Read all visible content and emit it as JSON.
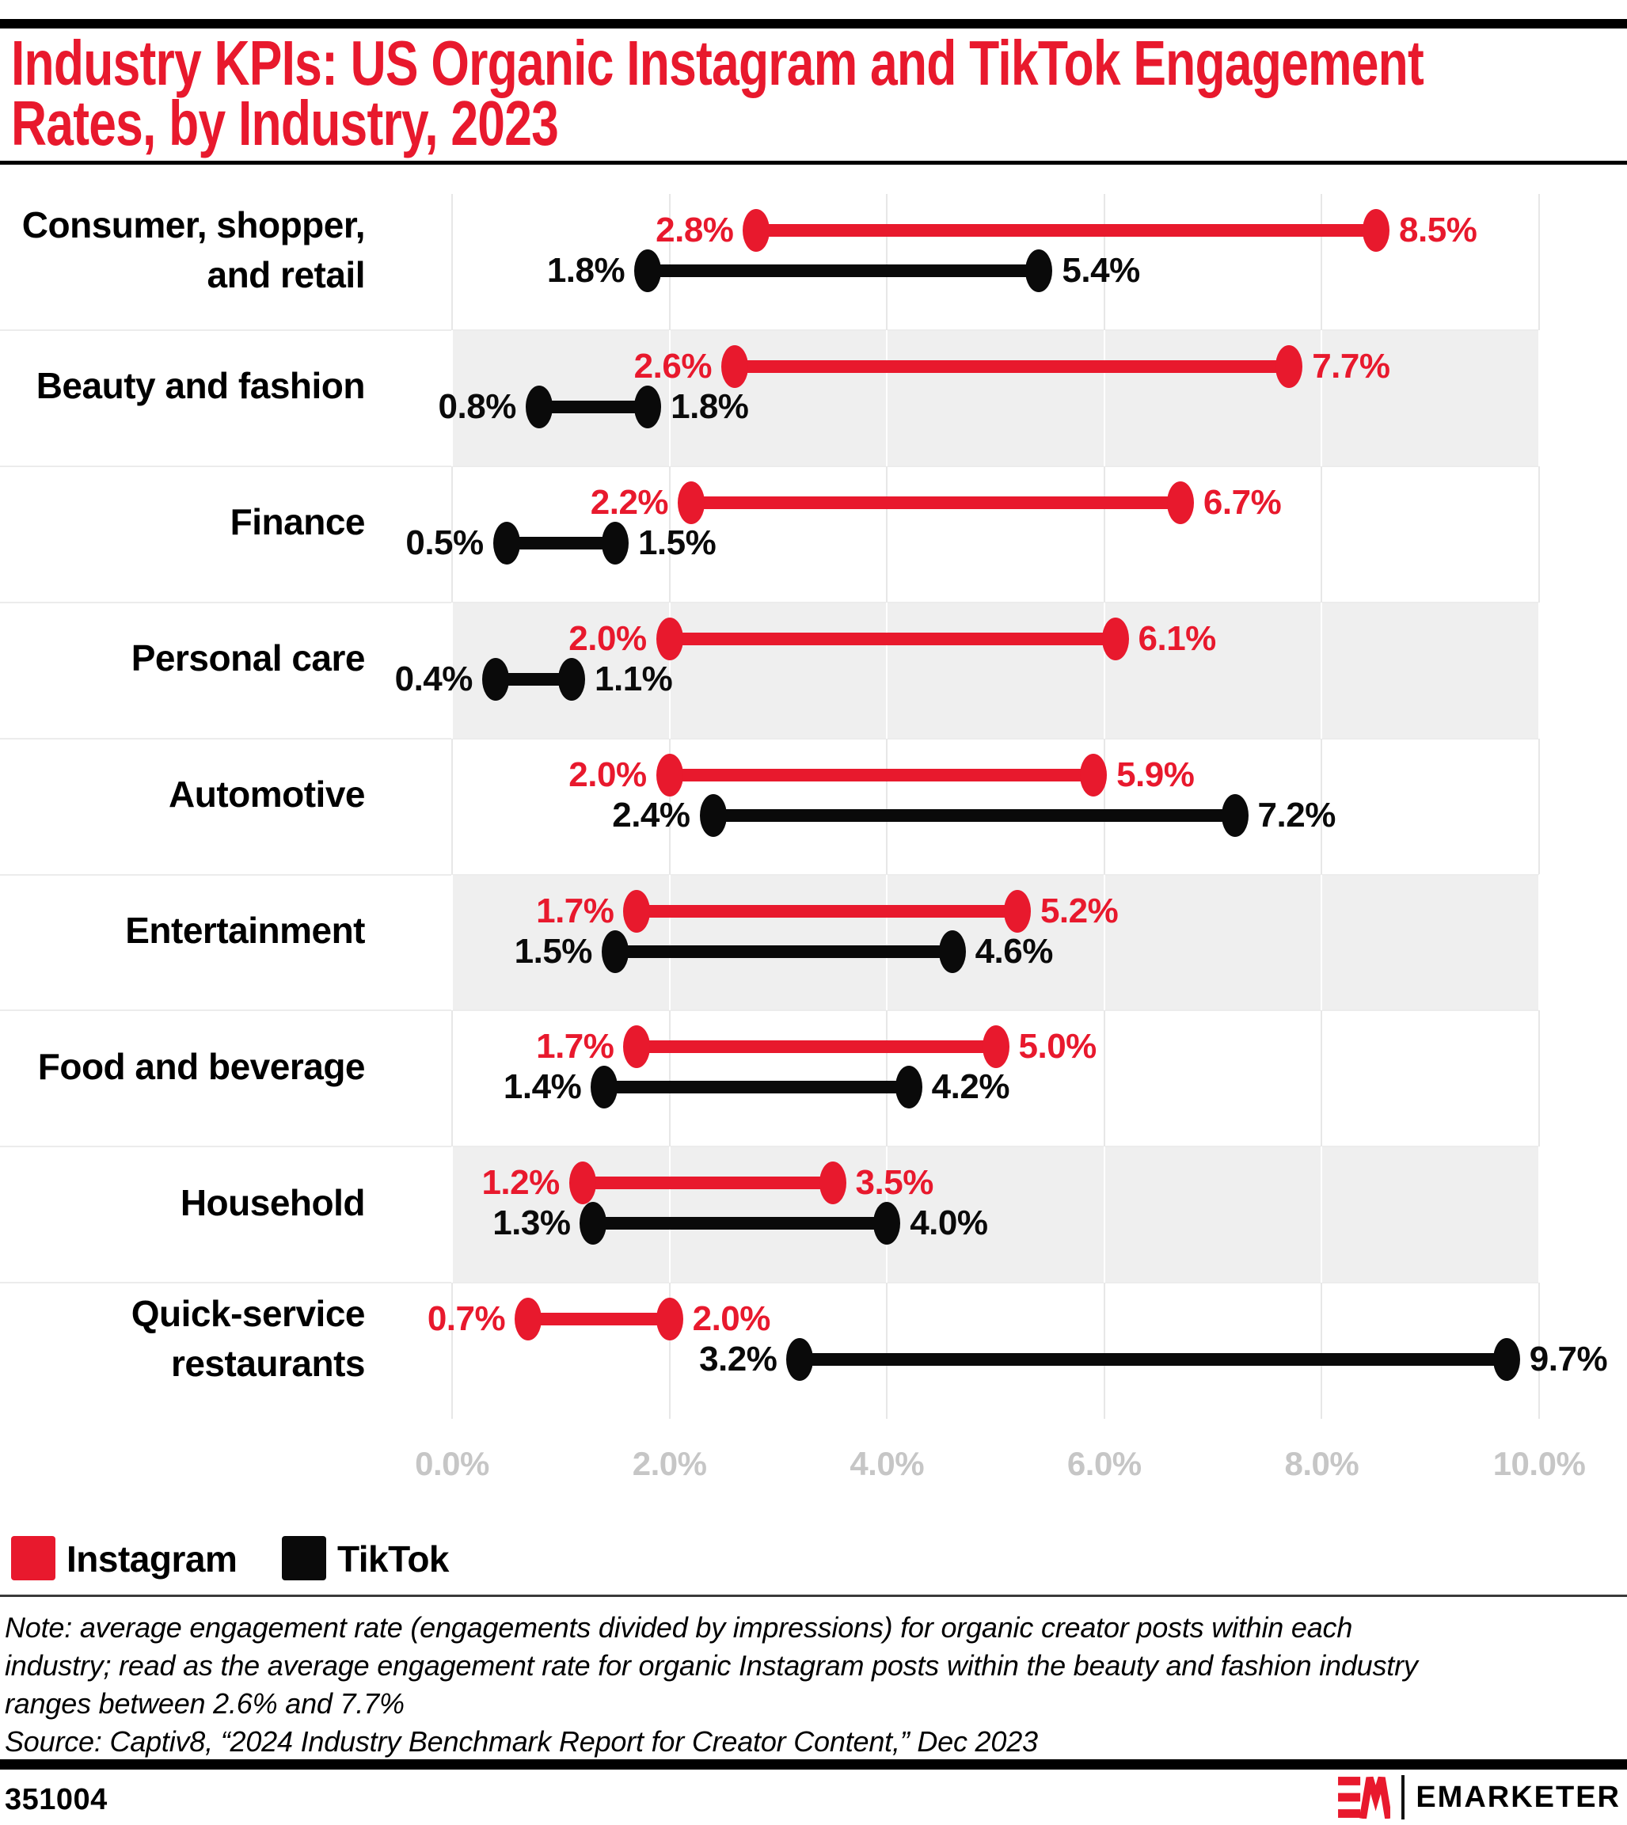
{
  "header": {
    "title_lines": [
      "Industry KPIs: US Organic Instagram and TikTok Engagement",
      "Rates, by Industry, 2023"
    ]
  },
  "colors": {
    "instagram": "#E8192D",
    "tiktok": "#0A0A0A",
    "band": "#EFEFEF",
    "axis_label": "#C6C6C6"
  },
  "chart_data": {
    "type": "dumbbell-range",
    "unit": "percent",
    "x_axis": {
      "min": 0,
      "max": 10,
      "ticks": [
        "0.0%",
        "2.0%",
        "4.0%",
        "6.0%",
        "8.0%",
        "10.0%"
      ],
      "grid": true
    },
    "legend": [
      {
        "name": "Instagram",
        "color": "#E8192D"
      },
      {
        "name": "TikTok",
        "color": "#0A0A0A"
      }
    ],
    "rows": [
      {
        "category_lines": [
          "Consumer, shopper,",
          "and retail"
        ],
        "instagram": [
          2.8,
          8.5
        ],
        "tiktok": [
          1.8,
          5.4
        ]
      },
      {
        "category_lines": [
          "Beauty and fashion"
        ],
        "instagram": [
          2.6,
          7.7
        ],
        "tiktok": [
          0.8,
          1.8
        ]
      },
      {
        "category_lines": [
          "Finance"
        ],
        "instagram": [
          2.2,
          6.7
        ],
        "tiktok": [
          0.5,
          1.5
        ]
      },
      {
        "category_lines": [
          "Personal care"
        ],
        "instagram": [
          2.0,
          6.1
        ],
        "tiktok": [
          0.4,
          1.1
        ]
      },
      {
        "category_lines": [
          "Automotive"
        ],
        "instagram": [
          2.0,
          5.9
        ],
        "tiktok": [
          2.4,
          7.2
        ]
      },
      {
        "category_lines": [
          "Entertainment"
        ],
        "instagram": [
          1.7,
          5.2
        ],
        "tiktok": [
          1.5,
          4.6
        ]
      },
      {
        "category_lines": [
          "Food and beverage"
        ],
        "instagram": [
          1.7,
          5.0
        ],
        "tiktok": [
          1.4,
          4.2
        ]
      },
      {
        "category_lines": [
          "Household"
        ],
        "instagram": [
          1.2,
          3.5
        ],
        "tiktok": [
          1.3,
          4.0
        ]
      },
      {
        "category_lines": [
          "Quick-service",
          "restaurants"
        ],
        "instagram": [
          0.7,
          2.0
        ],
        "tiktok": [
          3.2,
          9.7
        ]
      }
    ]
  },
  "note": {
    "lines": [
      "Note: average engagement rate (engagements divided by impressions) for organic creator posts within each",
      "industry; read as the average engagement rate for organic Instagram posts within the beauty and fashion industry",
      "ranges between 2.6% and 7.7%"
    ],
    "source": "Source: Captiv8, “2024 Industry Benchmark Report for Creator Content,” Dec 2023"
  },
  "footer": {
    "chart_id": "351004",
    "brand": "EMARKETER"
  }
}
